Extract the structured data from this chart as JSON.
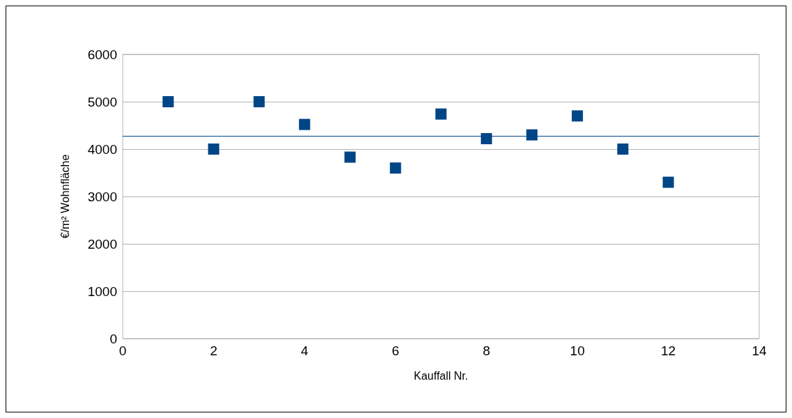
{
  "chart_data": {
    "type": "scatter",
    "xlabel": "Kauffall Nr.",
    "ylabel": "€/m² Wohnfläche",
    "x": [
      1,
      2,
      3,
      4,
      5,
      6,
      7,
      8,
      9,
      10,
      11,
      12
    ],
    "series": [
      {
        "color": "#004586",
        "values": [
          5000,
          4000,
          5000,
          4520,
          3830,
          3600,
          4740,
          4220,
          4300,
          4700,
          4000,
          3300
        ]
      }
    ],
    "xlim": [
      0,
      14
    ],
    "xticks": [
      0,
      2,
      4,
      6,
      8,
      10,
      12,
      14
    ],
    "ylim": [
      0,
      6000
    ],
    "yticks": [
      0,
      1000,
      2000,
      3000,
      4000,
      5000,
      6000
    ],
    "grid": "y",
    "marker": "square",
    "ref_lines": [
      {
        "axis": "y",
        "value": 4270,
        "color": "#004586"
      }
    ]
  }
}
